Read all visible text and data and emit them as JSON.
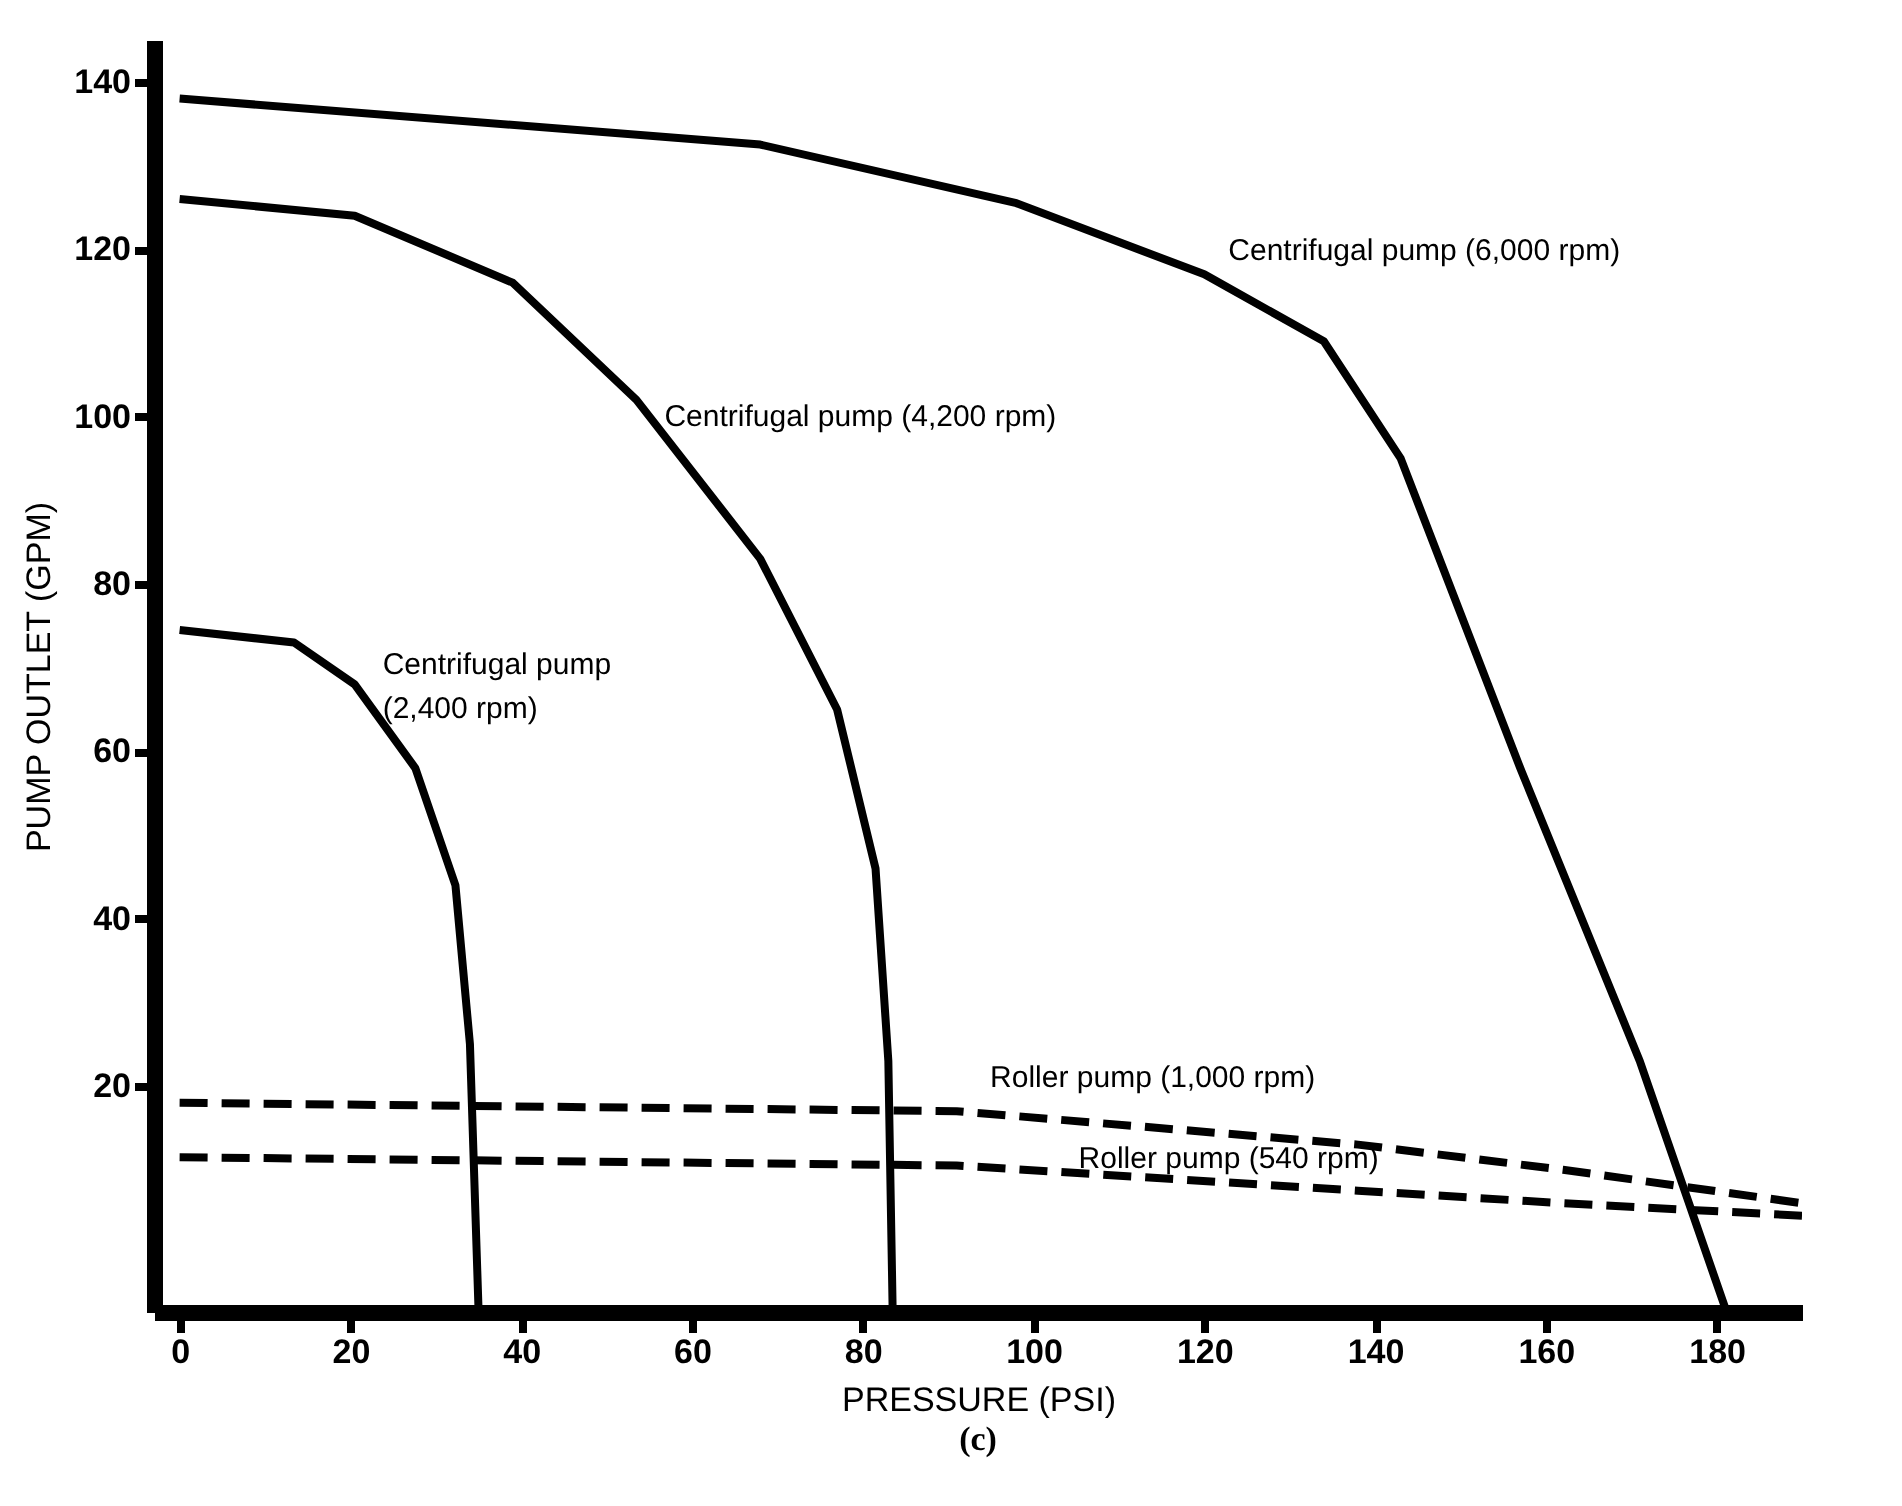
{
  "chart_data": {
    "type": "line",
    "xlabel": "PRESSURE (PSI)",
    "ylabel": "PUMP OUTLET (GPM)",
    "xlim": [
      -3,
      190
    ],
    "ylim": [
      -7,
      145
    ],
    "xticks": [
      0,
      20,
      40,
      60,
      80,
      100,
      120,
      140,
      160,
      180
    ],
    "yticks": [
      20,
      40,
      60,
      80,
      100,
      120,
      140
    ],
    "grid": false,
    "series": [
      {
        "name": "Centrifugal pump (6,000 rpm)",
        "color": "#000000",
        "line_style": "solid",
        "x": [
          0,
          68,
          98,
          120,
          134,
          143,
          157,
          171,
          181
        ],
        "values": [
          138,
          132.5,
          125.5,
          117,
          109,
          95,
          58,
          23,
          -6.5
        ]
      },
      {
        "name": "Centrifugal pump (4,200 rpm)",
        "color": "#000000",
        "line_style": "solid",
        "x": [
          0,
          20.5,
          39,
          53.5,
          68,
          77,
          81.5,
          83,
          83.5
        ],
        "values": [
          126,
          124,
          116,
          102,
          83,
          65,
          46,
          23,
          -6.5
        ]
      },
      {
        "name": "Centrifugal pump\n(2,400 rpm)",
        "color": "#000000",
        "line_style": "solid",
        "x": [
          0,
          13.4,
          20.5,
          27.6,
          32.3,
          34,
          35
        ],
        "values": [
          74.5,
          73,
          68,
          58,
          44,
          25,
          -6.5
        ]
      },
      {
        "name": "Roller pump (1,000 rpm)",
        "color": "#000000",
        "line_style": "dashed",
        "x": [
          0,
          91,
          138,
          162,
          190
        ],
        "values": [
          18,
          17,
          13,
          10,
          6
        ]
      },
      {
        "name": "Roller pump (540 rpm)",
        "color": "#000000",
        "line_style": "dashed",
        "x": [
          0,
          91,
          138,
          162,
          190
        ],
        "values": [
          11.5,
          10.5,
          7.5,
          6,
          4.5
        ]
      }
    ],
    "annotations": [
      "(c)"
    ]
  }
}
